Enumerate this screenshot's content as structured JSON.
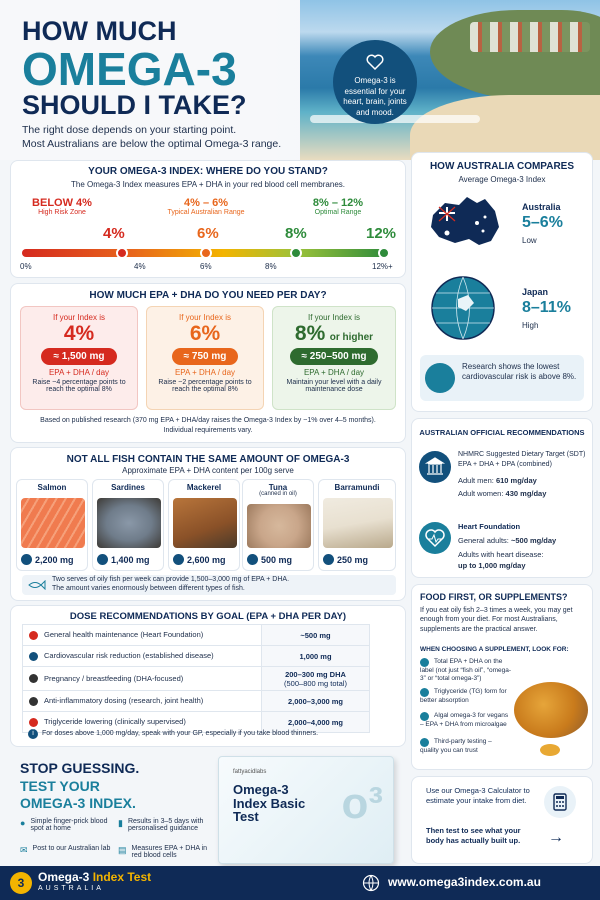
{
  "header": {
    "title_line1": "HOW MUCH",
    "title_line2": "OMEGA-3",
    "title_line3": "SHOULD I TAKE?",
    "subtitle_line1": "The right dose depends on your starting point.",
    "subtitle_line2": "Most Australians are below the optimal Omega-3 range.",
    "bubble_text": "Omega-3 is essential for your heart, brain, joints and mood."
  },
  "index_section": {
    "title": "YOUR OMEGA-3 INDEX: WHERE DO YOU STAND?",
    "subtitle": "The Omega-3 Index measures EPA + DHA in your red blood cell membranes.",
    "zones": [
      {
        "range": "BELOW 4%",
        "label": "High Risk Zone",
        "color": "#d52a1f"
      },
      {
        "range": "4% – 6%",
        "label": "Typical Australian Range",
        "color": "#e8661c"
      },
      {
        "range": "8% – 12%",
        "label": "Optimal Range",
        "color": "#2e8b3b"
      }
    ],
    "markers": [
      {
        "label": "4%",
        "value": 4,
        "color": "#d52a1f"
      },
      {
        "label": "6%",
        "value": 6,
        "color": "#e8661c"
      },
      {
        "label": "8%",
        "value": 8,
        "color": "#2e8b3b"
      },
      {
        "label": "12%",
        "value": 12,
        "color": "#2e8b3b"
      }
    ],
    "ticks": [
      "0%",
      "4%",
      "6%",
      "8%",
      "12%+"
    ]
  },
  "epa_section": {
    "title": "HOW MUCH EPA + DHA DO YOU NEED PER DAY?",
    "cards": [
      {
        "prefix": "If your Index is",
        "value": "4%",
        "suffix": "",
        "dose": "≈ 1,500 mg",
        "unit": "EPA + DHA / day",
        "note": "Raise ~4 percentage points to reach the optimal 8%",
        "color": "#d52a1f",
        "bg": "#fdeceb"
      },
      {
        "prefix": "If your Index is",
        "value": "6%",
        "suffix": "",
        "dose": "≈ 750 mg",
        "unit": "EPA + DHA / day",
        "note": "Raise ~2 percentage points to reach the optimal 8%",
        "color": "#e8661c",
        "bg": "#fdf1e6"
      },
      {
        "prefix": "If your Index is",
        "value": "8%",
        "suffix": "or higher",
        "dose": "≈ 250–500 mg",
        "unit": "EPA + DHA / day",
        "note": "Maintain your level with a daily maintenance dose",
        "color": "#2e6b2f",
        "bg": "#edf5ea"
      }
    ],
    "footnote_line1": "Based on published research (370 mg EPA + DHA/day raises the Omega-3 Index by ~1% over 4–5 months).",
    "footnote_line2": "Individual requirements vary."
  },
  "fish_section": {
    "title": "NOT ALL FISH CONTAIN THE SAME AMOUNT OF OMEGA-3",
    "subtitle": "Approximate EPA + DHA content per 100g serve",
    "fish": [
      {
        "name": "Salmon",
        "note": "",
        "amount": "2,200 mg",
        "color": "#f07b4f"
      },
      {
        "name": "Sardines",
        "note": "",
        "amount": "1,400 mg",
        "color": "#8a98a8"
      },
      {
        "name": "Mackerel",
        "note": "",
        "amount": "2,600 mg",
        "color": "#b8753b"
      },
      {
        "name": "Tuna",
        "note": "(canned in oil)",
        "amount": "500 mg",
        "color": "#c9a68a"
      },
      {
        "name": "Barramundi",
        "note": "",
        "amount": "250 mg",
        "color": "#e8e0d0"
      }
    ],
    "note_line1": "Two serves of oily fish per week can provide 1,500–3,000 mg of EPA + DHA.",
    "note_line2": "The amount varies enormously between different types of fish."
  },
  "dose_section": {
    "title": "DOSE RECOMMENDATIONS BY GOAL  (EPA + DHA PER DAY)",
    "rows": [
      {
        "goal": "General health maintenance (Heart Foundation)",
        "dose": "~500 mg",
        "color": "#d52a1f"
      },
      {
        "goal": "Cardiovascular risk reduction (established disease)",
        "dose": "1,000 mg",
        "color": "#12507c"
      },
      {
        "goal": "Pregnancy / breastfeeding (DHA-focused)",
        "dose": "200–300 mg DHA",
        "dose2": "(500–800 mg total)",
        "color": "#333333"
      },
      {
        "goal": "Anti-inflammatory dosing (research, joint health)",
        "dose": "2,000–3,000 mg",
        "color": "#333333"
      },
      {
        "goal": "Triglyceride lowering (clinically supervised)",
        "dose": "2,000–4,000 mg",
        "color": "#d52a1f"
      }
    ],
    "note": "For doses above 1,000 mg/day, speak with your GP, especially if you take blood thinners."
  },
  "australia": {
    "title": "HOW AUSTRALIA COMPARES",
    "subtitle": "Average Omega-3 Index",
    "aus_name": "Australia",
    "aus_value": "5–6%",
    "aus_level": "Low",
    "jp_name": "Japan",
    "jp_value": "8–11%",
    "jp_level": "High",
    "research": "Research shows the lowest cardiovascular risk is above 8%."
  },
  "official": {
    "title": "AUSTRALIAN OFFICIAL RECOMMENDATIONS",
    "nhmrc_title": "NHMRC Suggested Dietary Target (SDT)",
    "nhmrc_sub": "EPA + DHA + DPA (combined)",
    "men_label": "Adult men:",
    "men_value": "610 mg/day",
    "women_label": "Adult women:",
    "women_value": "430 mg/day",
    "hf_title": "Heart Foundation",
    "hf_general_label": "General adults:",
    "hf_general_value": "~500 mg/day",
    "hf_disease_label": "Adults with heart disease:",
    "hf_disease_value": "up to 1,000 mg/day"
  },
  "supplements": {
    "title": "FOOD FIRST, OR SUPPLEMENTS?",
    "text": "If you eat oily fish 2–3 times a week, you may get enough from your diet. For most Australians, supplements are the practical answer.",
    "look_for": "WHEN CHOOSING A SUPPLEMENT, LOOK FOR:",
    "items": [
      "Total EPA + DHA on the label (not just “fish oil”, “omega-3” or “total omega-3”)",
      "Triglyceride (TG) form for better absorption",
      "Algal omega-3 for vegans – EPA + DHA from microalgae",
      "Third-party testing – quality you can trust"
    ]
  },
  "cta": {
    "line1": "STOP GUESSING.",
    "line2": "TEST YOUR",
    "line3": "OMEGA-3 INDEX.",
    "features": [
      {
        "text": "Simple finger-prick blood spot at home",
        "icon": "blood-drop-icon"
      },
      {
        "text": "Results in 3–5 days with personalised guidance",
        "icon": "chart-icon"
      },
      {
        "text": "Post to our Australian lab",
        "icon": "mail-icon"
      },
      {
        "text": "Measures EPA + DHA in red blood cells",
        "icon": "clipboard-icon"
      }
    ],
    "box_brand": "fattyacidlabs",
    "box_title1": "Omega-3",
    "box_title2": "Index Basic",
    "box_title3": "Test",
    "calc_line1": "Use our Omega-3 Calculator to estimate your intake from diet.",
    "calc_line2": "Then test to see what your body has actually built up."
  },
  "footer": {
    "brand_part1": "Omega-3 ",
    "brand_part2": "Index Test",
    "brand_sub": "AUSTRALIA",
    "url": "www.omega3index.com.au",
    "accent": "#f3b400"
  }
}
